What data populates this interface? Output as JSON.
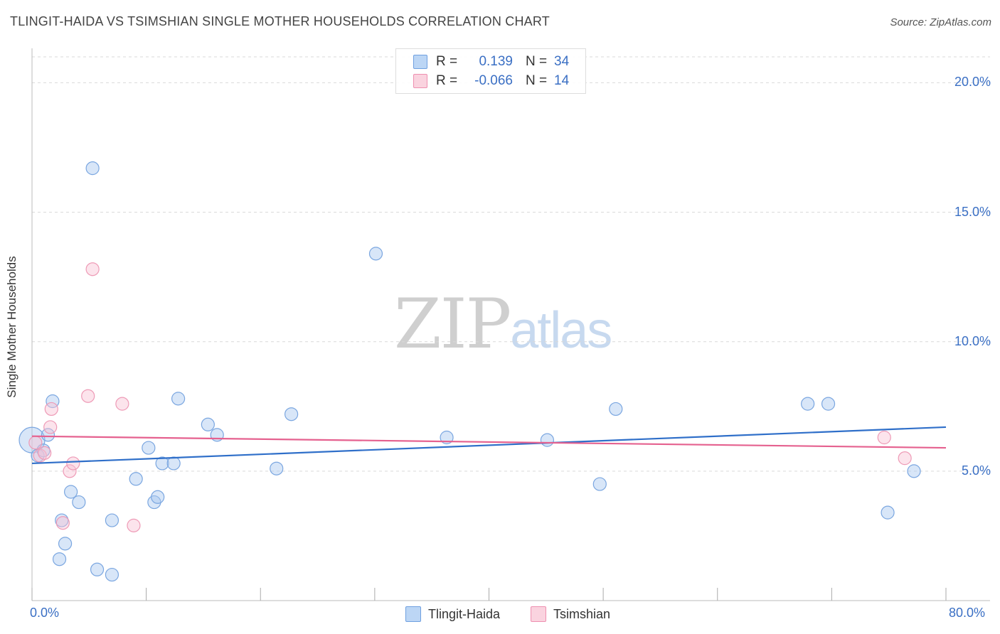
{
  "header": {
    "title": "TLINGIT-HAIDA VS TSIMSHIAN SINGLE MOTHER HOUSEHOLDS CORRELATION CHART",
    "source": "Source: ZipAtlas.com"
  },
  "watermark": {
    "zip": "ZIP",
    "atlas": "atlas"
  },
  "legend_box": {
    "rows": [
      {
        "r_label": "R =",
        "r_value": "0.139",
        "n_label": "N =",
        "n_value": "34",
        "color": "#a8c8f0",
        "border": "#6fa0e0"
      },
      {
        "r_label": "R =",
        "r_value": "-0.066",
        "n_label": "N =",
        "n_value": "14",
        "color": "#f8c4d4",
        "border": "#ee8fb0"
      }
    ]
  },
  "bottom_legend": {
    "items": [
      {
        "label": "Tlingit-Haida",
        "color": "#a8c8f0",
        "border": "#6fa0e0"
      },
      {
        "label": "Tsimshian",
        "color": "#f8c4d4",
        "border": "#ee8fb0"
      }
    ]
  },
  "colors": {
    "blue_fill": "rgba(168,200,240,0.45)",
    "blue_stroke": "#7aa6e0",
    "blue_line": "#2f6fc9",
    "pink_fill": "rgba(248,196,212,0.45)",
    "pink_stroke": "#ee9ab6",
    "pink_line": "#e5618f",
    "grid": "#d9d9d9",
    "axis_label": "#3a6fc4"
  },
  "chart_data": {
    "type": "scatter",
    "title": "TLINGIT-HAIDA VS TSIMSHIAN SINGLE MOTHER HOUSEHOLDS CORRELATION CHART",
    "xlabel": "",
    "ylabel": "Single Mother Households",
    "xlim": [
      0,
      80
    ],
    "ylim": [
      0,
      21
    ],
    "x_tick_labels": [
      "0.0%",
      "80.0%"
    ],
    "y_ticks": [
      5,
      10,
      15,
      20
    ],
    "y_tick_labels": [
      "5.0%",
      "10.0%",
      "15.0%",
      "20.0%"
    ],
    "grid": true,
    "legend_position": "top-center",
    "series": [
      {
        "name": "Tlingit-Haida",
        "r": 0.139,
        "n": 34,
        "trend": {
          "x0": 0,
          "y0": 5.3,
          "x1": 80,
          "y1": 6.7
        },
        "points": [
          [
            0.0,
            6.2
          ],
          [
            0.5,
            5.6
          ],
          [
            1.0,
            5.8
          ],
          [
            1.4,
            6.4
          ],
          [
            1.8,
            7.7
          ],
          [
            2.4,
            1.6
          ],
          [
            2.6,
            3.1
          ],
          [
            2.9,
            2.2
          ],
          [
            3.4,
            4.2
          ],
          [
            4.1,
            3.8
          ],
          [
            5.3,
            16.7
          ],
          [
            5.7,
            1.2
          ],
          [
            7.0,
            1.0
          ],
          [
            7.0,
            3.1
          ],
          [
            9.1,
            4.7
          ],
          [
            10.2,
            5.9
          ],
          [
            10.7,
            3.8
          ],
          [
            11.0,
            4.0
          ],
          [
            11.4,
            5.3
          ],
          [
            12.4,
            5.3
          ],
          [
            12.8,
            7.8
          ],
          [
            15.4,
            6.8
          ],
          [
            16.2,
            6.4
          ],
          [
            21.4,
            5.1
          ],
          [
            22.7,
            7.2
          ],
          [
            30.1,
            13.4
          ],
          [
            36.3,
            6.3
          ],
          [
            45.1,
            6.2
          ],
          [
            49.7,
            4.5
          ],
          [
            51.1,
            7.4
          ],
          [
            67.9,
            7.6
          ],
          [
            69.7,
            7.6
          ],
          [
            74.9,
            3.4
          ],
          [
            77.2,
            5.0
          ]
        ]
      },
      {
        "name": "Tsimshian",
        "r": -0.066,
        "n": 14,
        "trend": {
          "x0": 0,
          "y0": 6.35,
          "x1": 80,
          "y1": 5.9
        },
        "points": [
          [
            0.3,
            6.1
          ],
          [
            0.7,
            5.6
          ],
          [
            1.1,
            5.7
          ],
          [
            1.6,
            6.7
          ],
          [
            1.7,
            7.4
          ],
          [
            2.7,
            3.0
          ],
          [
            3.3,
            5.0
          ],
          [
            3.6,
            5.3
          ],
          [
            4.9,
            7.9
          ],
          [
            5.3,
            12.8
          ],
          [
            7.9,
            7.6
          ],
          [
            8.9,
            2.9
          ],
          [
            74.6,
            6.3
          ],
          [
            76.4,
            5.5
          ]
        ]
      }
    ]
  }
}
